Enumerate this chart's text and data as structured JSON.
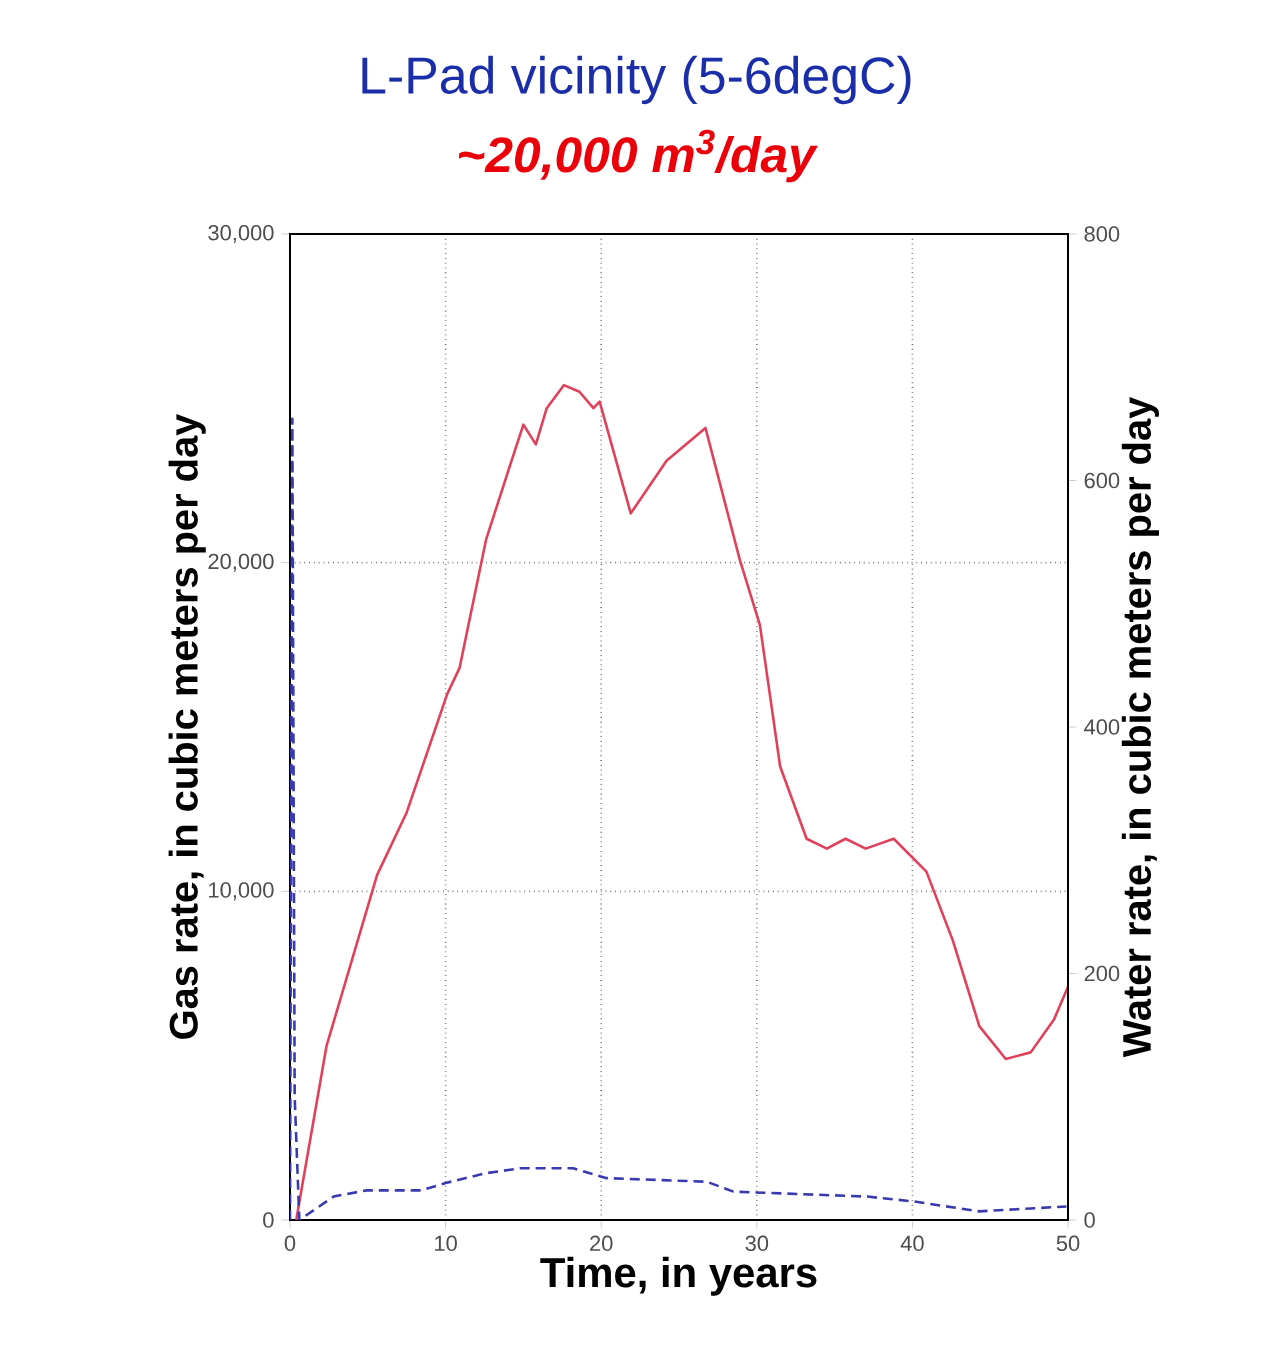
{
  "chart_data": {
    "type": "line",
    "title": "L-Pad vicinity (5-6degC)",
    "subtitle": "~20,000 m$^{3}$/day",
    "xlabel": "Time, in years",
    "ylabel": "Gas rate,  in cubic meters per day",
    "y2label": "Water rate, in cubic meters per day",
    "xlim": [
      0,
      50
    ],
    "xticks": [
      0,
      10,
      20,
      30,
      40,
      50
    ],
    "ylim": [
      0,
      30000
    ],
    "yticks": [
      0,
      {
        "value": 10000,
        "label": "10,000"
      },
      {
        "value": 20000,
        "label": "20,000"
      },
      {
        "value": 30000,
        "label": "30,000"
      }
    ],
    "y2lim": [
      0,
      800
    ],
    "y2ticks": [
      0,
      200,
      400,
      600,
      800
    ],
    "grid": true,
    "series": [
      {
        "color": "#e0405a",
        "line_style": "solid",
        "x": [
          0.4,
          2.35,
          5.6,
          7.5,
          10.1,
          10.9,
          12.6,
          14.1,
          15.0,
          15.8,
          16.5,
          17.6,
          18.6,
          19.5,
          19.9,
          21.9,
          24.2,
          26.7,
          28.9,
          30.2,
          31.5,
          33.2,
          34.5,
          35.7,
          37.0,
          38.8,
          40.9,
          42.6,
          44.3,
          46.0,
          47.6,
          49.1,
          50
        ],
        "values": [
          0,
          5300,
          10500,
          12400,
          16000,
          16800,
          20700,
          22900,
          24200,
          23600,
          24700,
          25400,
          25200,
          24700,
          24900,
          21500,
          23100,
          24100,
          20100,
          18100,
          13800,
          11600,
          11300,
          11600,
          11300,
          11600,
          10600,
          8500,
          5900,
          4900,
          5100,
          6100,
          7100
        ]
      },
      {
        "color": "#3a3ab0",
        "line_style": "dashed",
        "axis": "y2",
        "x": [
          0,
          0.15,
          0.3,
          0.6,
          2.8,
          4.9,
          8.4,
          10.0,
          12.6,
          14.8,
          18.2,
          20.3,
          26.8,
          28.5,
          37.1,
          40.1,
          44.3,
          49.9
        ],
        "values": [
          0,
          650,
          100,
          0,
          19,
          24,
          24,
          30,
          38,
          42,
          42,
          34,
          31,
          23,
          19,
          15,
          7,
          11
        ]
      }
    ]
  }
}
